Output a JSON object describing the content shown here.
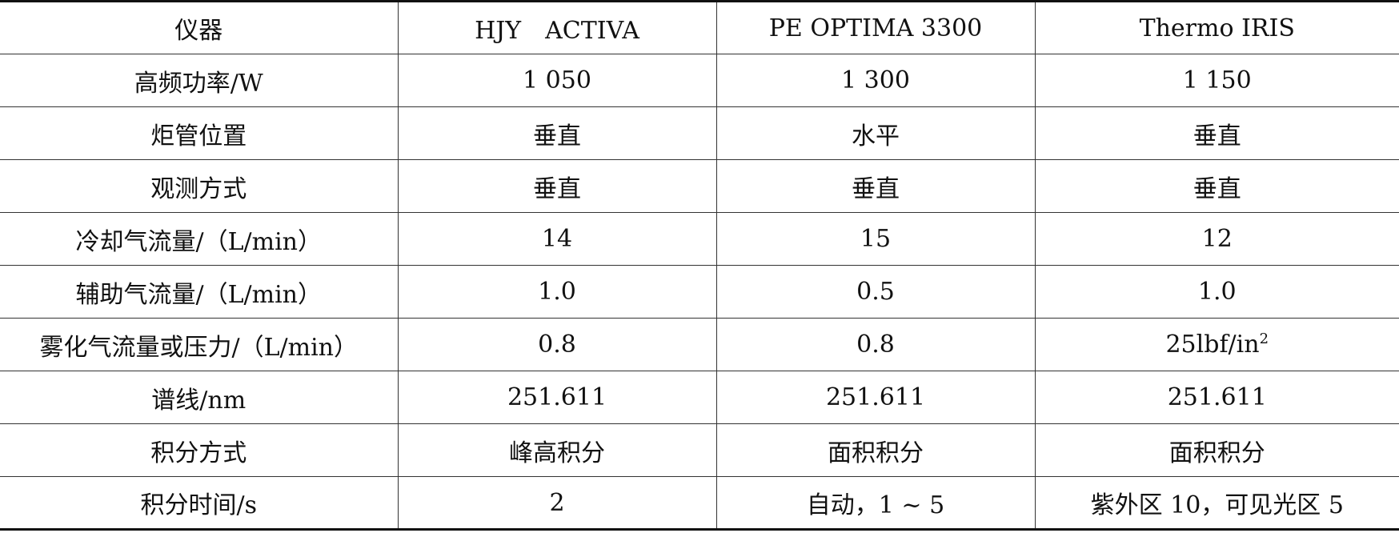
{
  "table": {
    "headers": [
      "仪器",
      "HJY　ACTIVA",
      "PE OPTIMA 3300",
      "Thermo IRIS"
    ],
    "rows": [
      [
        "高频功率/W",
        "1 050",
        "1 300",
        "1 150"
      ],
      [
        "炬管位置",
        "垂直",
        "水平",
        "垂直"
      ],
      [
        "观测方式",
        "垂直",
        "垂直",
        "垂直"
      ],
      [
        "冷却气流量/（L/min）",
        "14",
        "15",
        "12"
      ],
      [
        "辅助气流量/（L/min）",
        "1.0",
        "0.5",
        "1.0"
      ],
      [
        "雾化气流量或压力/（L/min）",
        "0.8",
        "0.8",
        "25lbf/in"
      ],
      [
        "谱线/nm",
        "251.611",
        "251.611",
        "251.611"
      ],
      [
        "积分方式",
        "峰高积分",
        "面积积分",
        "面积积分"
      ],
      [
        "积分时间/s",
        "2",
        "自动，1 ~ 5",
        "紫外区 10，可见光区 5"
      ]
    ],
    "superscripts": {
      "pressure_unit_exponent": "2"
    }
  }
}
